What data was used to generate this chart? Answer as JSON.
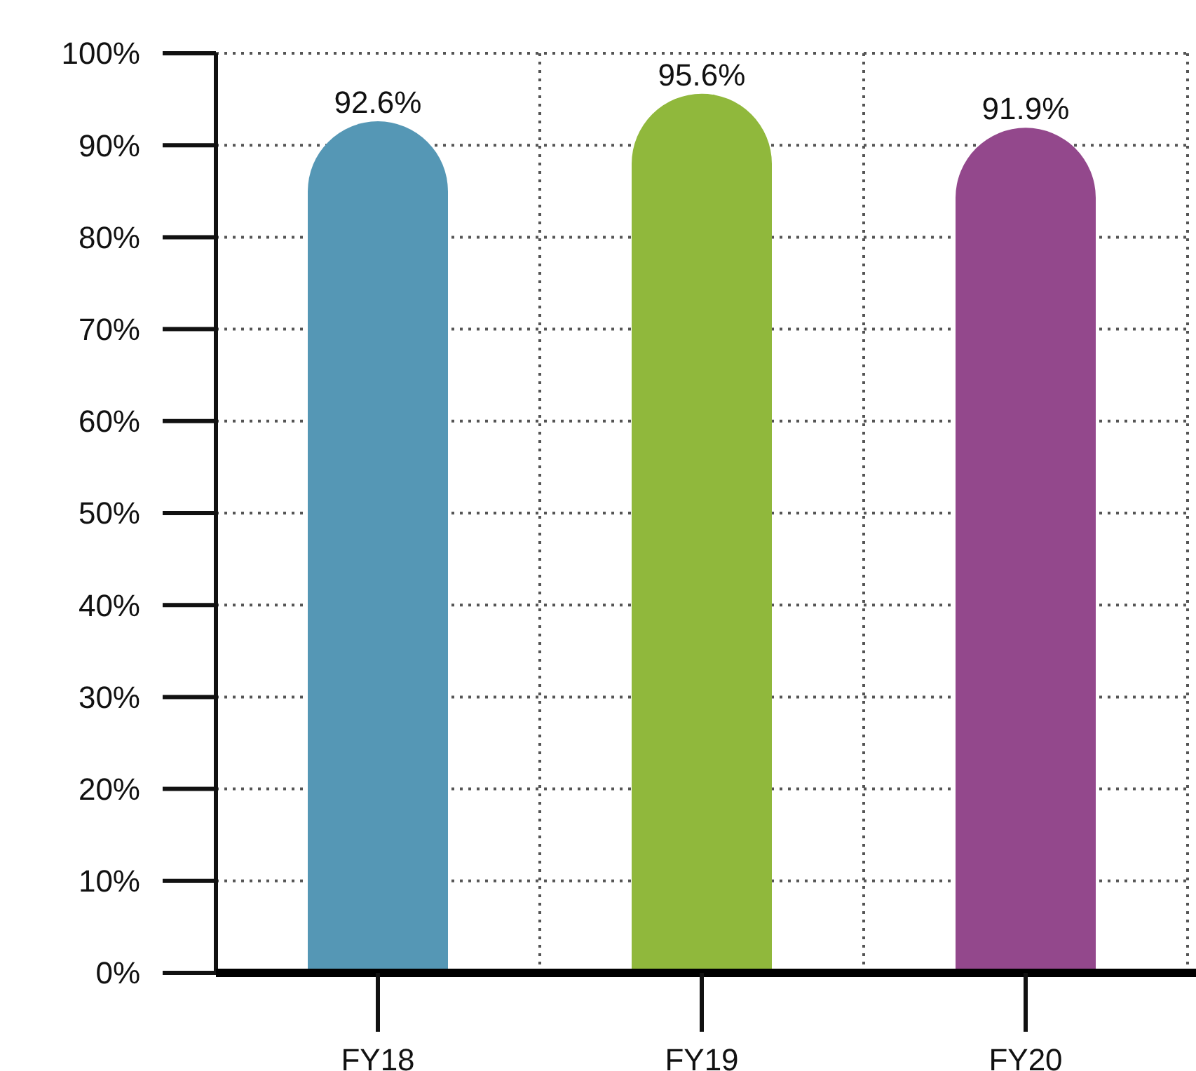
{
  "chart_data": {
    "type": "bar",
    "categories": [
      "FY18",
      "FY19",
      "FY20"
    ],
    "values": [
      92.6,
      95.6,
      91.9
    ],
    "colors": [
      "#5597b5",
      "#90b83c",
      "#93488c"
    ],
    "ylim": [
      0,
      100
    ],
    "yticks": [
      {
        "value": 0,
        "label": "0%"
      },
      {
        "value": 10,
        "label": "10%"
      },
      {
        "value": 20,
        "label": "20%"
      },
      {
        "value": 30,
        "label": "30%"
      },
      {
        "value": 40,
        "label": "40%"
      },
      {
        "value": 50,
        "label": "50%"
      },
      {
        "value": 60,
        "label": "60%"
      },
      {
        "value": 70,
        "label": "70%"
      },
      {
        "value": 80,
        "label": "80%"
      },
      {
        "value": 90,
        "label": "90%"
      },
      {
        "value": 100,
        "label": "100%"
      }
    ],
    "value_labels": [
      "92.6%",
      "95.6%",
      "91.9%"
    ],
    "grid": true
  }
}
